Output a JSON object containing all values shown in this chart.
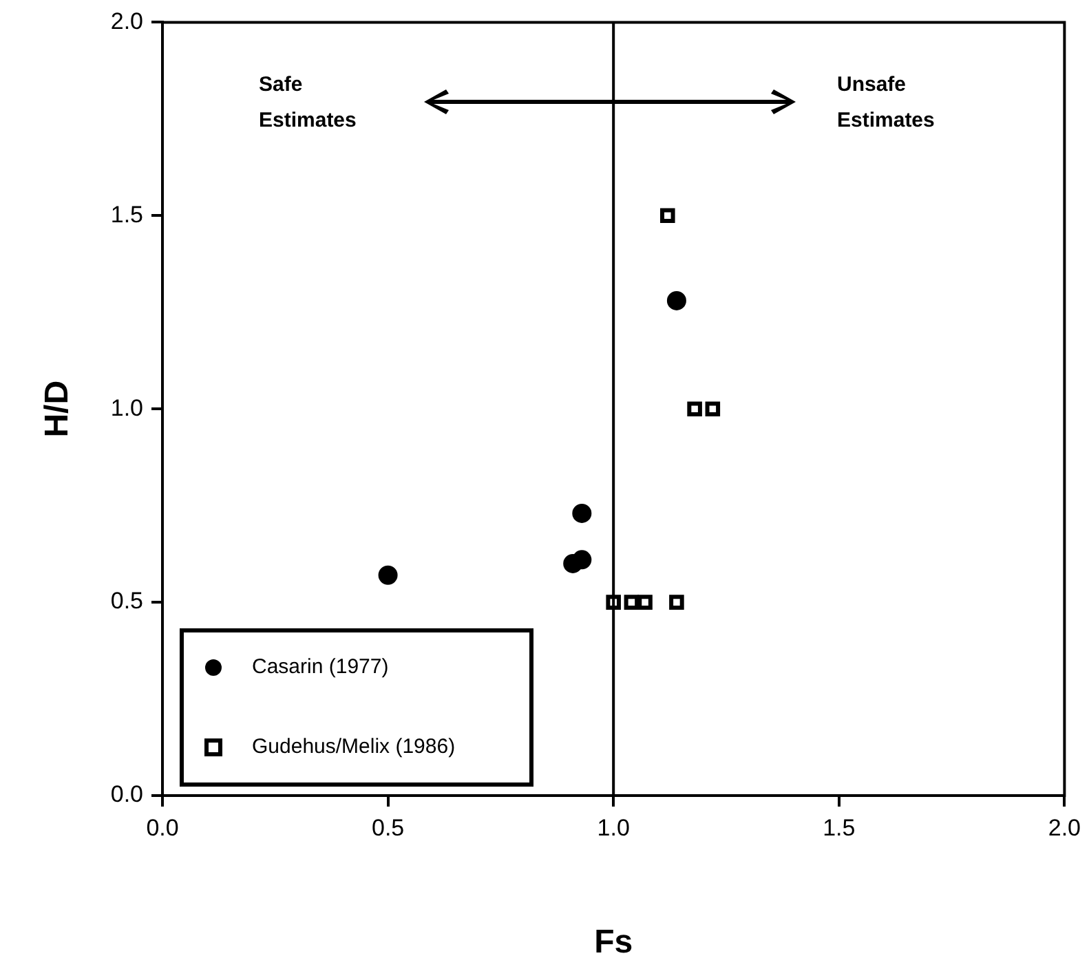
{
  "chart_data": {
    "type": "scatter",
    "xlabel": "Fs",
    "ylabel": "H/D",
    "xlim": [
      0,
      2
    ],
    "xticks": [
      {
        "value": 0,
        "label": "0.0"
      },
      0.5,
      {
        "value": 1,
        "label": "1.0"
      },
      1.5,
      {
        "value": 2,
        "label": "2.0"
      }
    ],
    "ylim": [
      0,
      2
    ],
    "yticks": [
      {
        "value": 0,
        "label": "0.0"
      },
      0.5,
      {
        "value": 1,
        "label": "1.0"
      },
      1.5,
      {
        "value": 2,
        "label": "2.0"
      }
    ],
    "grid": false,
    "legend": "bottom left",
    "series": [
      {
        "name": "Casarin (1977)",
        "color": "#000000",
        "marker": "circle",
        "x": [
          0.5,
          0.91,
          0.93,
          0.93,
          1.14
        ],
        "values": [
          0.57,
          0.6,
          0.61,
          0.73,
          1.28
        ]
      },
      {
        "name": "Gudehus/Melix (1986)",
        "color": "#000000",
        "marker": "square",
        "x": [
          1.12,
          1.18,
          1.22,
          1.0,
          1.04,
          1.07,
          1.14
        ],
        "values": [
          1.5,
          1.0,
          1.0,
          0.5,
          0.5,
          0.5,
          0.5
        ]
      }
    ],
    "ref_lines": [
      {
        "axis": "x",
        "value": 1.0,
        "color": "#000000"
      }
    ],
    "annotations": [
      "Safe Estimates",
      "Unsafe Estimates"
    ]
  }
}
